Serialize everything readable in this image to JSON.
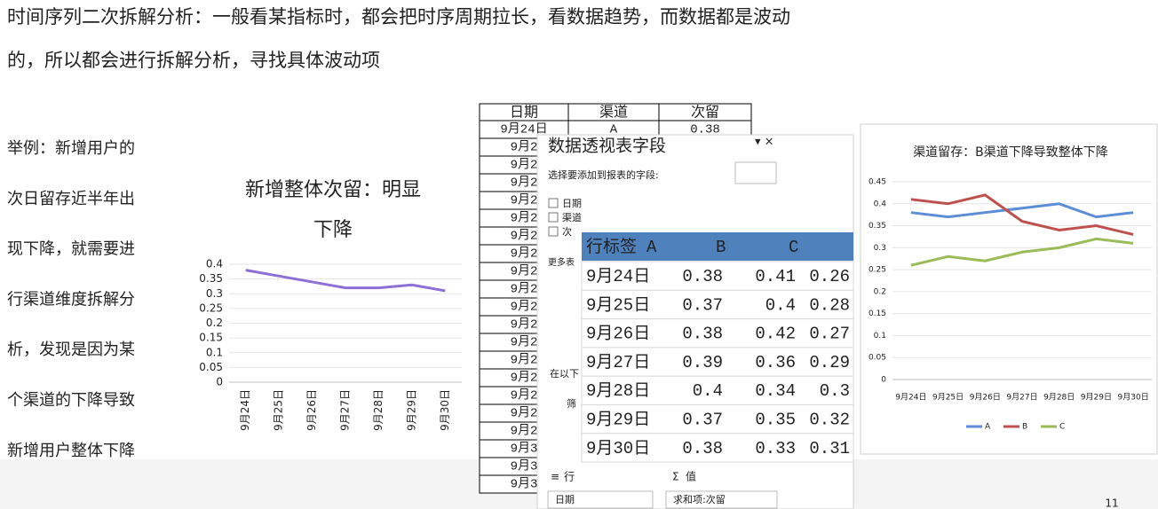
{
  "header": {
    "lines": [
      "时间序列二次拆解分析：一般看某指标时，都会把时序周期拉长，看数据趋势，而数据都是波动",
      "的，所以都会进行拆解分析，寻找具体波动项"
    ]
  },
  "sidebar": {
    "lines": [
      "举例：新增用户的",
      "次日留存近半年出",
      "现下降，就需要进",
      "行渠道维度拆解分",
      "析，发现是因为某",
      "个渠道的下降导致",
      "新增用户整体下降"
    ]
  },
  "chart_data": [
    {
      "type": "line",
      "title": [
        "新增整体次留：明显",
        "下降"
      ],
      "categories": [
        "9月24日",
        "9月25日",
        "9月26日",
        "9月27日",
        "9月28日",
        "9月29日",
        "9月30日"
      ],
      "values": [
        0.38,
        0.36,
        0.34,
        0.32,
        0.32,
        0.33,
        0.31
      ],
      "color": "#8e6fd8",
      "ylim": [
        0,
        0.4
      ],
      "yticks": [
        0,
        0.05,
        0.1,
        0.15,
        0.2,
        0.25,
        0.3,
        0.35,
        0.4
      ],
      "grid": true
    },
    {
      "type": "line",
      "title": "渠道留存：B渠道下降导致整体下降",
      "categories": [
        "9月24日",
        "9月25日",
        "9月26日",
        "9月27日",
        "9月28日",
        "9月29日",
        "9月30日"
      ],
      "series": [
        {
          "name": "A",
          "color": "#5b8ed6",
          "values": [
            0.38,
            0.37,
            0.38,
            0.39,
            0.4,
            0.37,
            0.38
          ]
        },
        {
          "name": "B",
          "color": "#c0504d",
          "values": [
            0.41,
            0.4,
            0.42,
            0.36,
            0.34,
            0.35,
            0.33
          ]
        },
        {
          "name": "C",
          "color": "#9bbb59",
          "values": [
            0.26,
            0.28,
            0.27,
            0.29,
            0.3,
            0.32,
            0.31
          ]
        }
      ],
      "ylim": [
        0,
        0.45
      ],
      "yticks": [
        0,
        0.05,
        0.1,
        0.15,
        0.2,
        0.25,
        0.3,
        0.35,
        0.4,
        0.45
      ],
      "grid": true,
      "legend": "bottom"
    }
  ],
  "sheet": {
    "columns": [
      "日期",
      "渠道",
      "次留"
    ],
    "rows": [
      [
        "9月24日",
        "A",
        0.38
      ],
      [
        "9月2"
      ],
      [
        "9月2"
      ],
      [
        "9月2"
      ],
      [
        "9月2"
      ],
      [
        "9月2"
      ],
      [
        "9月2"
      ],
      [
        "9月2"
      ],
      [
        "9月2"
      ],
      [
        "9月2"
      ],
      [
        "9月2"
      ],
      [
        "9月2"
      ],
      [
        "9月2"
      ],
      [
        "9月2"
      ],
      [
        "9月2"
      ],
      [
        "9月2"
      ],
      [
        "9月2"
      ],
      [
        "9月2"
      ],
      [
        "9月3"
      ],
      [
        "9月3"
      ],
      [
        "9月3"
      ]
    ]
  },
  "pivot_panel": {
    "title": "数据透视表字段",
    "prompt": "选择要添加到报表的字段:",
    "fields": [
      "日期",
      "渠道",
      "次"
    ],
    "more": "更多表",
    "drag_hint": "在以下",
    "filter": "筛",
    "rows_label": "行",
    "values_label": "值",
    "rows_field": "日期",
    "values_field": "求和项:次留"
  },
  "pivot_table": {
    "header": [
      "行标签",
      "A",
      "B",
      "C"
    ],
    "rows": [
      [
        "9月24日",
        0.38,
        0.41,
        0.26
      ],
      [
        "9月25日",
        0.37,
        0.4,
        0.28
      ],
      [
        "9月26日",
        0.38,
        0.42,
        0.27
      ],
      [
        "9月27日",
        0.39,
        0.36,
        0.29
      ],
      [
        "9月28日",
        0.4,
        0.34,
        0.3
      ],
      [
        "9月29日",
        0.37,
        0.35,
        0.32
      ],
      [
        "9月30日",
        0.38,
        0.33,
        0.31
      ]
    ]
  },
  "page_number": "11"
}
